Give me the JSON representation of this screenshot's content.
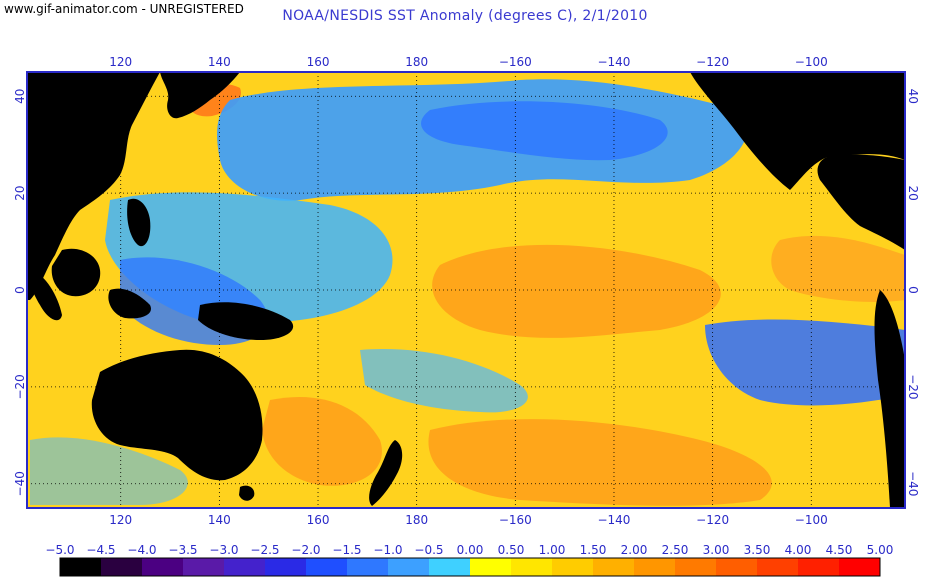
{
  "watermark": "www.gif-animator.com - UNREGISTERED",
  "title": "NOAA/NESDIS SST Anomaly (degrees C), 2/1/2010",
  "axes": {
    "lon_labels": [
      "120",
      "140",
      "160",
      "180",
      "−160",
      "−140",
      "−120",
      "−100"
    ],
    "lon_values": [
      120,
      140,
      160,
      180,
      200,
      220,
      240,
      260
    ],
    "lat_labels": [
      "40",
      "20",
      "0",
      "−20",
      "−40"
    ],
    "lat_values": [
      40,
      20,
      0,
      -20,
      -40
    ],
    "lon_range": [
      101,
      279
    ],
    "lat_range": [
      45,
      -45
    ]
  },
  "colorbar": {
    "labels": [
      "−5.0",
      "−4.5",
      "−4.0",
      "−3.5",
      "−3.0",
      "−2.5",
      "−2.0",
      "−1.5",
      "−1.0",
      "−0.5",
      "0.00",
      "0.50",
      "1.00",
      "1.50",
      "2.00",
      "2.50",
      "3.00",
      "3.50",
      "4.00",
      "4.50",
      "5.00"
    ],
    "colors": [
      "#000000",
      "#2a0040",
      "#4b0082",
      "#5a1aa8",
      "#4422cc",
      "#2a2ae6",
      "#1f4fff",
      "#2f78ff",
      "#3da0ff",
      "#3fd0ff",
      "#ffff00",
      "#ffe600",
      "#ffcc00",
      "#ffb000",
      "#ff9600",
      "#ff7a00",
      "#ff5e00",
      "#ff4000",
      "#ff2000",
      "#ff0000"
    ]
  },
  "colors": {
    "land": "#000000",
    "ocean_base": "#ffd21e",
    "title": "#3a3ad0",
    "axis": "#2a2ac8",
    "grid": "#000000"
  }
}
